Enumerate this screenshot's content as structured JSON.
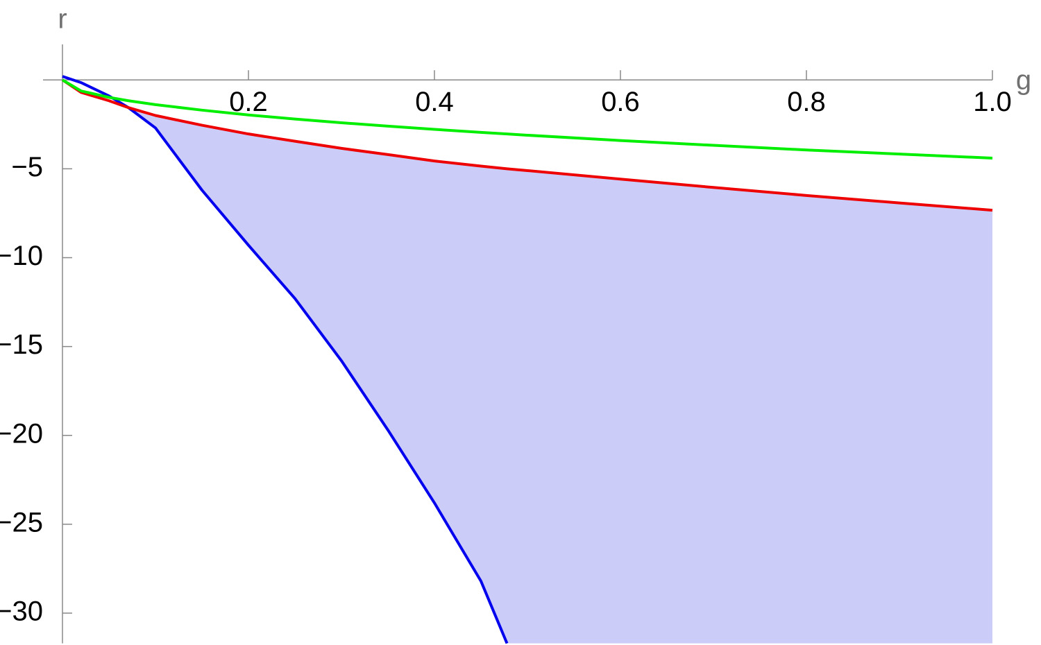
{
  "chart_data": {
    "type": "line",
    "x_label": "g",
    "y_label": "r",
    "x": [
      0,
      0.02,
      0.05,
      0.071,
      0.1,
      0.15,
      0.2,
      0.25,
      0.3,
      0.35,
      0.4,
      0.45,
      0.478,
      0.5,
      0.6,
      0.7,
      0.8,
      0.9,
      1.0
    ],
    "series": [
      {
        "color": "#0000ee",
        "values": [
          0.2,
          -0.15,
          -0.9,
          -1.56,
          -2.7,
          -6.2,
          -9.3,
          -12.3,
          -15.8,
          -19.7,
          -23.8,
          -28.2,
          -31.7,
          null,
          null,
          null,
          null,
          null,
          null
        ]
      },
      {
        "color": "#ee0000",
        "values": [
          0,
          -0.7,
          -1.17,
          -1.56,
          -2.0,
          -2.55,
          -3.04,
          -3.45,
          -3.85,
          -4.2,
          -4.56,
          -4.85,
          -5.0,
          -5.1,
          -5.58,
          -6.05,
          -6.5,
          -6.92,
          -7.33
        ]
      },
      {
        "color": "#00ee00",
        "values": [
          0,
          -0.62,
          -0.98,
          -1.17,
          -1.39,
          -1.7,
          -1.97,
          -2.2,
          -2.41,
          -2.6,
          -2.78,
          -2.95,
          -3.04,
          -3.11,
          -3.41,
          -3.68,
          -3.94,
          -4.17,
          -4.4
        ]
      }
    ],
    "fill_color": "#ccccf9",
    "xlim": [
      0,
      1
    ],
    "ylim": [
      -31.7,
      2
    ],
    "xticks": [
      0.2,
      0.4,
      0.6,
      0.8,
      {
        "value": 1,
        "label": "1.0"
      }
    ],
    "yticks": [
      {
        "value": -5,
        "label": "−5"
      },
      {
        "value": -10,
        "label": "−10"
      },
      {
        "value": -15,
        "label": "−15"
      },
      {
        "value": -20,
        "label": "−20"
      },
      {
        "value": -25,
        "label": "−25"
      },
      {
        "value": -30,
        "label": "−30"
      }
    ]
  }
}
